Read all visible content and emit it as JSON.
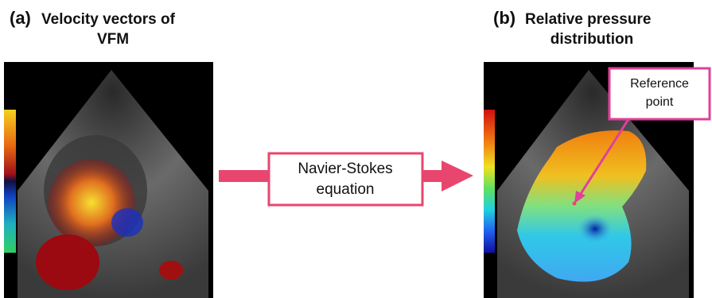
{
  "panels": [
    {
      "label": "(a)",
      "title_lines": [
        "Velocity vectors of",
        "VFM"
      ]
    },
    {
      "label": "(b)",
      "title_lines": [
        "Relative pressure",
        "distribution"
      ]
    }
  ],
  "equation": {
    "lines": [
      "Navier-Stokes",
      "equation"
    ]
  },
  "callout": {
    "lines": [
      "Reference",
      "point"
    ]
  }
}
